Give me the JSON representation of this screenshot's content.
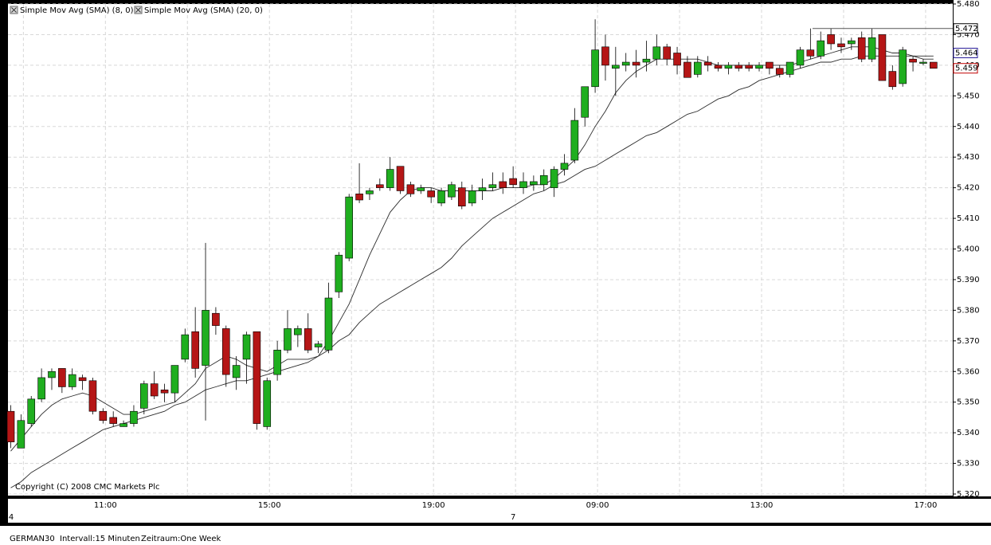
{
  "chart_data": {
    "type": "candlestick",
    "legend_position": "top-left",
    "grid": true,
    "up_color": "#1fae1f",
    "down_color": "#b51616",
    "ylim": [
      5.32,
      5.48
    ],
    "yticks": [
      {
        "value": 5.32,
        "label": "5.320"
      },
      {
        "value": 5.33,
        "label": "5.330"
      },
      {
        "value": 5.34,
        "label": "5.340"
      },
      {
        "value": 5.35,
        "label": "5.350"
      },
      {
        "value": 5.36,
        "label": "5.360"
      },
      {
        "value": 5.37,
        "label": "5.370"
      },
      {
        "value": 5.38,
        "label": "5.380"
      },
      {
        "value": 5.39,
        "label": "5.390"
      },
      {
        "value": 5.4,
        "label": "5.400"
      },
      {
        "value": 5.41,
        "label": "5.410"
      },
      {
        "value": 5.42,
        "label": "5.420"
      },
      {
        "value": 5.43,
        "label": "5.430"
      },
      {
        "value": 5.44,
        "label": "5.440"
      },
      {
        "value": 5.45,
        "label": "5.450"
      },
      {
        "value": 5.46,
        "label": "5.460"
      },
      {
        "value": 5.47,
        "label": "5.470"
      },
      {
        "value": 5.48,
        "label": "5.480"
      }
    ],
    "categories": [
      null,
      null,
      null,
      null,
      null,
      null,
      null,
      null,
      null,
      "11:00",
      null,
      null,
      null,
      null,
      null,
      null,
      null,
      null,
      null,
      null,
      null,
      null,
      null,
      null,
      null,
      "15:00",
      null,
      null,
      null,
      null,
      null,
      null,
      null,
      null,
      null,
      null,
      null,
      null,
      null,
      null,
      null,
      "19:00",
      null,
      null,
      null,
      null,
      null,
      null,
      null,
      null,
      null,
      null,
      null,
      null,
      null,
      null,
      null,
      "09:00",
      null,
      null,
      null,
      null,
      null,
      null,
      null,
      null,
      null,
      null,
      null,
      null,
      null,
      null,
      null,
      "13:00",
      null,
      null,
      null,
      null,
      null,
      null,
      null,
      null,
      null,
      null,
      null,
      null,
      null,
      null,
      null,
      "17:00",
      null
    ],
    "dates": [
      "4",
      null,
      null,
      null,
      null,
      null,
      null,
      null,
      null,
      null,
      null,
      null,
      null,
      null,
      null,
      null,
      null,
      null,
      null,
      null,
      null,
      null,
      null,
      null,
      null,
      null,
      null,
      null,
      null,
      null,
      null,
      null,
      null,
      null,
      null,
      null,
      null,
      null,
      null,
      null,
      null,
      null,
      null,
      null,
      null,
      null,
      null,
      null,
      null,
      "7",
      null,
      null,
      null,
      null,
      null,
      null,
      null,
      null,
      null,
      null,
      null,
      null,
      null,
      null,
      null,
      null,
      null,
      null,
      null,
      null,
      null,
      null,
      null,
      null,
      null,
      null,
      null,
      null,
      null,
      null,
      null,
      null,
      null,
      null,
      null,
      null,
      null,
      null,
      null,
      null,
      null
    ],
    "open": [
      5.347,
      5.335,
      5.343,
      5.351,
      5.358,
      5.361,
      5.355,
      5.358,
      5.357,
      5.347,
      5.345,
      5.342,
      5.343,
      5.348,
      5.356,
      5.354,
      5.353,
      5.364,
      5.373,
      5.362,
      5.379,
      5.374,
      5.358,
      5.364,
      5.373,
      5.342,
      5.359,
      5.367,
      5.372,
      5.374,
      5.368,
      5.367,
      5.386,
      5.397,
      5.418,
      5.418,
      5.421,
      5.42,
      5.427,
      5.421,
      5.419,
      5.419,
      5.415,
      5.417,
      5.42,
      5.415,
      5.419,
      5.42,
      5.422,
      5.423,
      5.42,
      5.421,
      5.421,
      5.42,
      5.426,
      5.429,
      5.443,
      5.453,
      5.466,
      5.459,
      5.46,
      5.461,
      5.461,
      5.462,
      5.466,
      5.464,
      5.461,
      5.457,
      5.461,
      5.46,
      5.459,
      5.46,
      5.46,
      5.459,
      5.461,
      5.459,
      5.457,
      5.46,
      5.465,
      5.463,
      5.47,
      5.467,
      5.467,
      5.469,
      5.462,
      5.47,
      5.458,
      5.454,
      5.462,
      5.461,
      5.461
    ],
    "high": [
      5.349,
      5.346,
      5.352,
      5.361,
      5.361,
      5.361,
      5.361,
      5.359,
      5.358,
      5.348,
      5.347,
      5.344,
      5.349,
      5.357,
      5.36,
      5.356,
      5.362,
      5.374,
      5.381,
      5.402,
      5.381,
      5.375,
      5.365,
      5.373,
      5.373,
      5.358,
      5.37,
      5.38,
      5.375,
      5.379,
      5.37,
      5.389,
      5.399,
      5.418,
      5.428,
      5.42,
      5.423,
      5.43,
      5.427,
      5.422,
      5.421,
      5.42,
      5.42,
      5.422,
      5.422,
      5.421,
      5.423,
      5.425,
      5.425,
      5.427,
      5.425,
      5.424,
      5.426,
      5.427,
      5.431,
      5.446,
      5.453,
      5.475,
      5.47,
      5.466,
      5.464,
      5.465,
      5.468,
      5.47,
      5.467,
      5.466,
      5.463,
      5.463,
      5.463,
      5.461,
      5.461,
      5.461,
      5.461,
      5.461,
      5.461,
      5.46,
      5.461,
      5.466,
      5.472,
      5.471,
      5.472,
      5.469,
      5.469,
      5.471,
      5.472,
      5.47,
      5.46,
      5.466,
      5.463,
      5.462,
      5.461
    ],
    "low": [
      5.335,
      5.335,
      5.342,
      5.35,
      5.354,
      5.353,
      5.354,
      5.354,
      5.346,
      5.343,
      5.342,
      5.342,
      5.342,
      5.346,
      5.351,
      5.35,
      5.35,
      5.363,
      5.358,
      5.344,
      5.372,
      5.355,
      5.354,
      5.356,
      5.341,
      5.341,
      5.357,
      5.366,
      5.368,
      5.366,
      5.366,
      5.366,
      5.384,
      5.396,
      5.415,
      5.416,
      5.419,
      5.419,
      5.418,
      5.417,
      5.418,
      5.415,
      5.414,
      5.416,
      5.413,
      5.414,
      5.416,
      5.419,
      5.418,
      5.42,
      5.418,
      5.419,
      5.419,
      5.417,
      5.424,
      5.428,
      5.44,
      5.451,
      5.455,
      5.45,
      5.458,
      5.456,
      5.458,
      5.46,
      5.46,
      5.457,
      5.456,
      5.456,
      5.458,
      5.458,
      5.457,
      5.458,
      5.458,
      5.458,
      5.457,
      5.456,
      5.456,
      5.459,
      5.462,
      5.462,
      5.465,
      5.464,
      5.465,
      5.461,
      5.461,
      5.455,
      5.452,
      5.453,
      5.458,
      5.46,
      5.459
    ],
    "close": [
      5.337,
      5.344,
      5.351,
      5.358,
      5.36,
      5.355,
      5.359,
      5.357,
      5.347,
      5.344,
      5.343,
      5.343,
      5.347,
      5.356,
      5.352,
      5.353,
      5.362,
      5.372,
      5.361,
      5.38,
      5.375,
      5.359,
      5.362,
      5.372,
      5.343,
      5.357,
      5.367,
      5.374,
      5.374,
      5.367,
      5.369,
      5.384,
      5.398,
      5.417,
      5.416,
      5.419,
      5.42,
      5.426,
      5.419,
      5.418,
      5.42,
      5.417,
      5.419,
      5.421,
      5.414,
      5.419,
      5.42,
      5.421,
      5.42,
      5.421,
      5.422,
      5.422,
      5.424,
      5.426,
      5.428,
      5.442,
      5.453,
      5.465,
      5.46,
      5.46,
      5.461,
      5.46,
      5.462,
      5.466,
      5.462,
      5.46,
      5.456,
      5.461,
      5.46,
      5.459,
      5.46,
      5.459,
      5.459,
      5.46,
      5.459,
      5.457,
      5.461,
      5.465,
      5.463,
      5.468,
      5.467,
      5.466,
      5.468,
      5.462,
      5.469,
      5.455,
      5.453,
      5.465,
      5.461,
      5.461,
      5.459
    ],
    "series": [
      {
        "name": "Simple Mov Avg (SMA) (8, 0)",
        "color": "#2b2b2b",
        "values": [
          5.334,
          5.338,
          5.342,
          5.346,
          5.349,
          5.351,
          5.352,
          5.353,
          5.352,
          5.35,
          5.348,
          5.346,
          5.346,
          5.347,
          5.348,
          5.349,
          5.35,
          5.353,
          5.356,
          5.361,
          5.363,
          5.365,
          5.364,
          5.362,
          5.361,
          5.36,
          5.362,
          5.364,
          5.364,
          5.364,
          5.365,
          5.37,
          5.376,
          5.382,
          5.39,
          5.398,
          5.405,
          5.412,
          5.416,
          5.419,
          5.42,
          5.42,
          5.419,
          5.419,
          5.419,
          5.419,
          5.419,
          5.419,
          5.42,
          5.42,
          5.42,
          5.421,
          5.421,
          5.423,
          5.426,
          5.429,
          5.434,
          5.44,
          5.445,
          5.451,
          5.455,
          5.458,
          5.46,
          5.462,
          5.462,
          5.462,
          5.462,
          5.462,
          5.461,
          5.46,
          5.46,
          5.46,
          5.46,
          5.46,
          5.46,
          5.46,
          5.46,
          5.461,
          5.462,
          5.463,
          5.464,
          5.465,
          5.466,
          5.466,
          5.466,
          5.465,
          5.464,
          5.464,
          5.463,
          5.462,
          5.462
        ]
      },
      {
        "name": "Simple Mov Avg (SMA) (20, 0)",
        "color": "#2b2b2b",
        "values": [
          5.322,
          5.324,
          5.327,
          5.329,
          5.331,
          5.333,
          5.335,
          5.337,
          5.339,
          5.341,
          5.342,
          5.343,
          5.344,
          5.345,
          5.346,
          5.347,
          5.349,
          5.35,
          5.352,
          5.354,
          5.355,
          5.356,
          5.357,
          5.357,
          5.358,
          5.359,
          5.36,
          5.361,
          5.362,
          5.363,
          5.365,
          5.367,
          5.37,
          5.372,
          5.376,
          5.379,
          5.382,
          5.384,
          5.386,
          5.388,
          5.39,
          5.392,
          5.394,
          5.397,
          5.401,
          5.404,
          5.407,
          5.41,
          5.412,
          5.414,
          5.416,
          5.418,
          5.419,
          5.421,
          5.422,
          5.424,
          5.426,
          5.427,
          5.429,
          5.431,
          5.433,
          5.435,
          5.437,
          5.438,
          5.44,
          5.442,
          5.444,
          5.445,
          5.447,
          5.449,
          5.45,
          5.452,
          5.453,
          5.455,
          5.456,
          5.457,
          5.458,
          5.459,
          5.46,
          5.461,
          5.461,
          5.462,
          5.462,
          5.463,
          5.463,
          5.463,
          5.463,
          5.463,
          5.463,
          5.463,
          5.463
        ]
      }
    ],
    "price_markers": [
      {
        "value": 5.472,
        "label": "5.472",
        "color": "#000000"
      },
      {
        "value": 5.464,
        "label": "5.464",
        "color": "#2a1e9a"
      },
      {
        "value": 5.459,
        "label": "5.459",
        "color": "#c00000"
      }
    ],
    "copyright": "Copyright (C) 2008 CMC Markets Plc",
    "footer": {
      "symbol": "GERMAN30",
      "interval": "Intervall:15 Minuten",
      "period": "Zeitraum:One Week"
    }
  }
}
